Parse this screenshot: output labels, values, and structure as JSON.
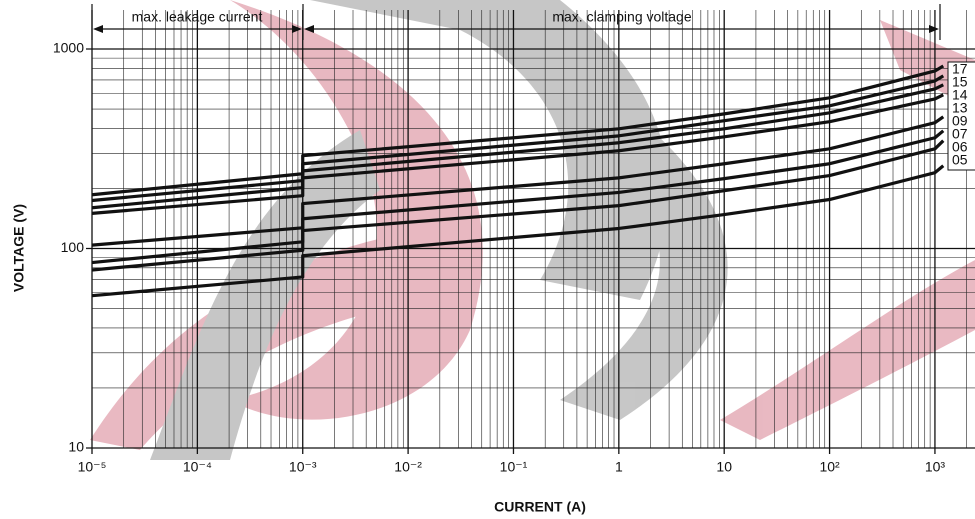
{
  "chart_data": {
    "type": "line",
    "xlabel": "CURRENT (A)",
    "ylabel": "VOLTAGE (V)",
    "annotations": [
      "max. leakage current",
      "max. clamping voltage"
    ],
    "log_x": true,
    "log_y": true,
    "grid": true,
    "minor_grid": true,
    "legend": "right",
    "xlim": [
      1e-05,
      2400
    ],
    "ylim": [
      10,
      1000
    ],
    "xticks": [
      {
        "value": 1e-05,
        "label": "10⁻⁵"
      },
      {
        "value": 0.0001,
        "label": "10⁻⁴"
      },
      {
        "value": 0.001,
        "label": "10⁻³"
      },
      {
        "value": 0.01,
        "label": "10⁻²"
      },
      {
        "value": 0.1,
        "label": "10⁻¹"
      },
      1,
      10,
      {
        "value": 100,
        "label": "10²"
      },
      {
        "value": 1000,
        "label": "10³"
      }
    ],
    "yticks": [
      10,
      100,
      1000
    ],
    "x": [
      1e-05,
      0.001,
      0.001,
      1,
      10,
      100,
      1000,
      1200
    ],
    "series": [
      {
        "name": "17",
        "color": "#111111",
        "values": [
          186,
          237,
          292,
          398,
          473,
          569,
          776,
          822
        ]
      },
      {
        "name": "15",
        "color": "#111111",
        "values": [
          174,
          219,
          266,
          367,
          437,
          519,
          692,
          733
        ]
      },
      {
        "name": "14",
        "color": "#111111",
        "values": [
          160,
          202,
          245,
          339,
          398,
          479,
          631,
          661
        ]
      },
      {
        "name": "13",
        "color": "#111111",
        "values": [
          150,
          184,
          226,
          309,
          363,
          432,
          562,
          589
        ]
      },
      {
        "name": "09",
        "color": "#111111",
        "values": [
          104,
          127,
          168,
          226,
          266,
          316,
          427,
          457
        ]
      },
      {
        "name": "07",
        "color": "#111111",
        "values": [
          85,
          108,
          141,
          191,
          224,
          266,
          359,
          389
        ]
      },
      {
        "name": "06",
        "color": "#111111",
        "values": [
          78,
          98,
          123,
          164,
          195,
          232,
          316,
          347
        ]
      },
      {
        "name": "05",
        "color": "#111111",
        "values": [
          58,
          72,
          92,
          126,
          148,
          176,
          240,
          260
        ]
      }
    ]
  }
}
